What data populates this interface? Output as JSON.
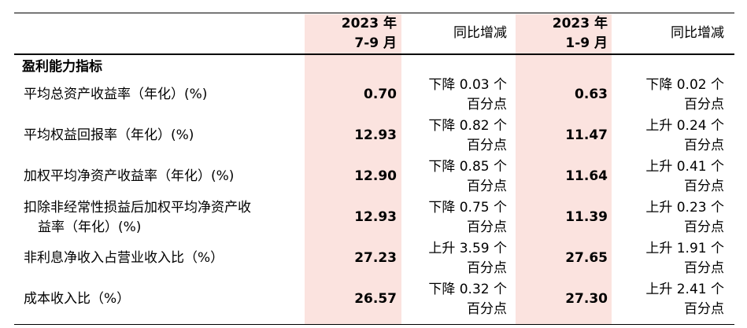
{
  "header": {
    "q3_period_year": "2023 年",
    "q3_period_range": "7-9 月",
    "q3_change": "同比增减",
    "ytd_period_year": "2023 年",
    "ytd_period_range": "1-9 月",
    "ytd_change": "同比增减"
  },
  "section_title": "盈利能力指标",
  "rows": [
    {
      "label": "平均总资产收益率（年化）(%)",
      "q3": "0.70",
      "q3_chg_1": "下降 0.03 个",
      "q3_chg_2": "百分点",
      "ytd": "0.63",
      "ytd_chg_1": "下降 0.02 个",
      "ytd_chg_2": "百分点"
    },
    {
      "label": "平均权益回报率（年化）(%)",
      "q3": "12.93",
      "q3_chg_1": "下降 0.82 个",
      "q3_chg_2": "百分点",
      "ytd": "11.47",
      "ytd_chg_1": "上升 0.24 个",
      "ytd_chg_2": "百分点"
    },
    {
      "label": "加权平均净资产收益率（年化）(%)",
      "q3": "12.90",
      "q3_chg_1": "下降 0.85 个",
      "q3_chg_2": "百分点",
      "ytd": "11.64",
      "ytd_chg_1": "上升 0.41 个",
      "ytd_chg_2": "百分点"
    },
    {
      "label_1": "扣除非经常性损益后加权平均净资产收",
      "label_2": "益率（年化）(%)",
      "q3": "12.93",
      "q3_chg_1": "下降 0.75 个",
      "q3_chg_2": "百分点",
      "ytd": "11.39",
      "ytd_chg_1": "上升 0.23 个",
      "ytd_chg_2": "百分点"
    },
    {
      "label": "非利息净收入占营业收入比（%）",
      "q3": "27.23",
      "q3_chg_1": "上升 3.59 个",
      "q3_chg_2": "百分点",
      "ytd": "27.65",
      "ytd_chg_1": "上升 1.91 个",
      "ytd_chg_2": "百分点"
    },
    {
      "label": "成本收入比（%）",
      "q3": "26.57",
      "q3_chg_1": "下降 0.32 个",
      "q3_chg_2": "百分点",
      "ytd": "27.30",
      "ytd_chg_1": "上升 2.41 个",
      "ytd_chg_2": "百分点"
    }
  ]
}
